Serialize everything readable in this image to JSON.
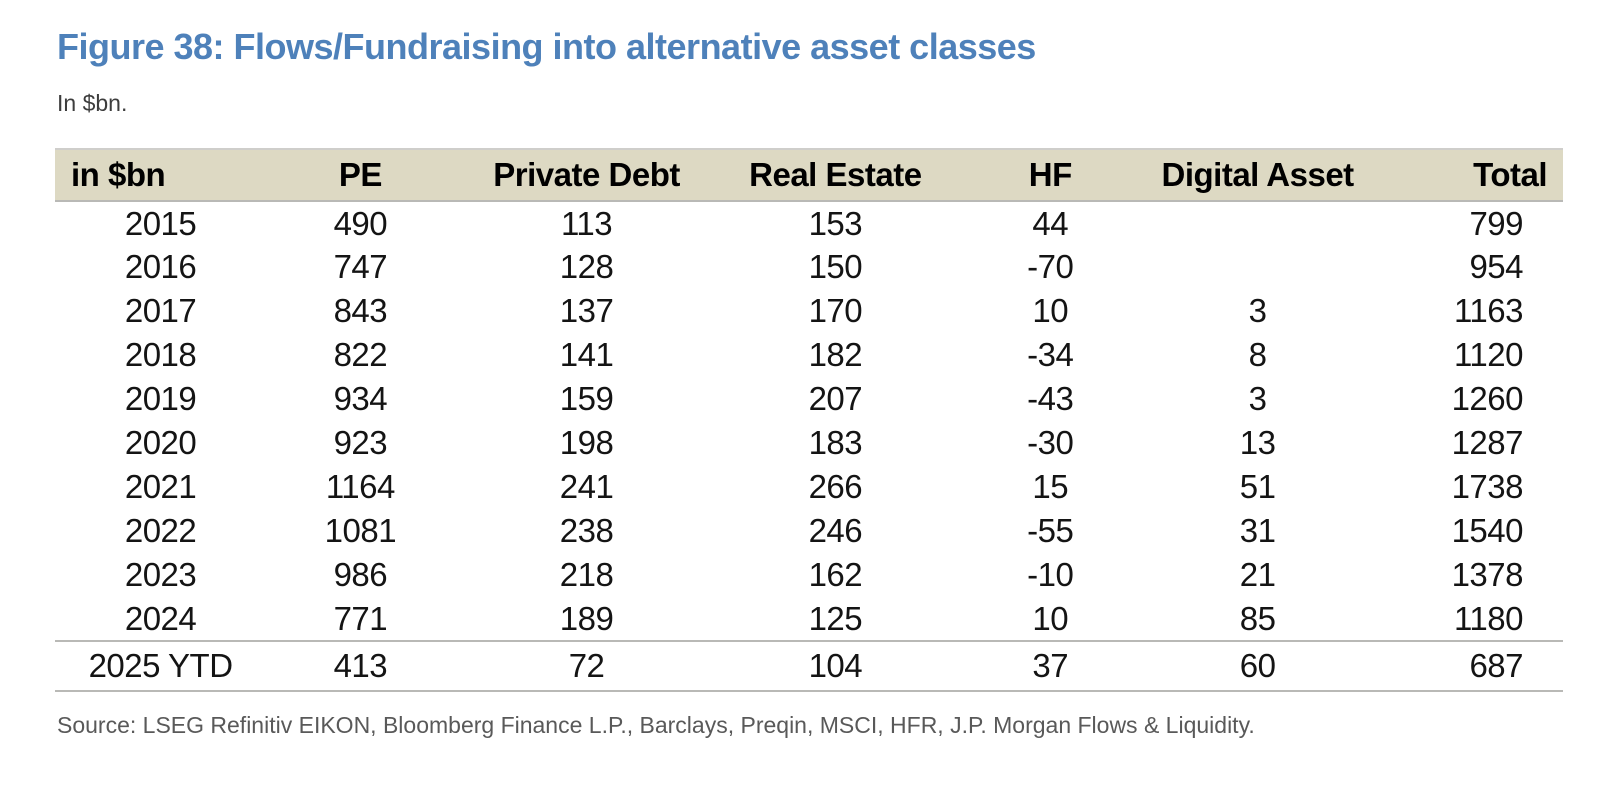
{
  "figure": {
    "title": "Figure 38: Flows/Fundraising into alternative asset classes",
    "subtitle": "In $bn.",
    "source": "Source: LSEG Refinitiv EIKON, Bloomberg Finance L.P., Barclays, Preqin, MSCI, HFR, J.P. Morgan Flows & Liquidity."
  },
  "colors": {
    "title": "#4e81ba",
    "header_bg": "#ddd9c3",
    "separator_light": "#cfcecb",
    "separator_mid": "#b9b9b6",
    "body_text": "#141414",
    "source_text": "#595959"
  },
  "chart_data": {
    "type": "table",
    "title": "Figure 38: Flows/Fundraising into alternative asset classes",
    "units": "In $bn.",
    "columns": [
      "in $bn",
      "PE",
      "Private Debt",
      "Real Estate",
      "HF",
      "Digital Asset",
      "Total"
    ],
    "rows": [
      {
        "cells": [
          "2015",
          "490",
          "113",
          "153",
          "44",
          "",
          "799"
        ],
        "ytd": false
      },
      {
        "cells": [
          "2016",
          "747",
          "128",
          "150",
          "-70",
          "",
          "954"
        ],
        "ytd": false
      },
      {
        "cells": [
          "2017",
          "843",
          "137",
          "170",
          "10",
          "3",
          "1163"
        ],
        "ytd": false
      },
      {
        "cells": [
          "2018",
          "822",
          "141",
          "182",
          "-34",
          "8",
          "1120"
        ],
        "ytd": false
      },
      {
        "cells": [
          "2019",
          "934",
          "159",
          "207",
          "-43",
          "3",
          "1260"
        ],
        "ytd": false
      },
      {
        "cells": [
          "2020",
          "923",
          "198",
          "183",
          "-30",
          "13",
          "1287"
        ],
        "ytd": false
      },
      {
        "cells": [
          "2021",
          "1164",
          "241",
          "266",
          "15",
          "51",
          "1738"
        ],
        "ytd": false
      },
      {
        "cells": [
          "2022",
          "1081",
          "238",
          "246",
          "-55",
          "31",
          "1540"
        ],
        "ytd": false
      },
      {
        "cells": [
          "2023",
          "986",
          "218",
          "162",
          "-10",
          "21",
          "1378"
        ],
        "ytd": false
      },
      {
        "cells": [
          "2024",
          "771",
          "189",
          "125",
          "10",
          "85",
          "1180"
        ],
        "ytd": false
      },
      {
        "cells": [
          "2025 YTD",
          "413",
          "72",
          "104",
          "37",
          "60",
          "687"
        ],
        "ytd": true
      }
    ]
  }
}
